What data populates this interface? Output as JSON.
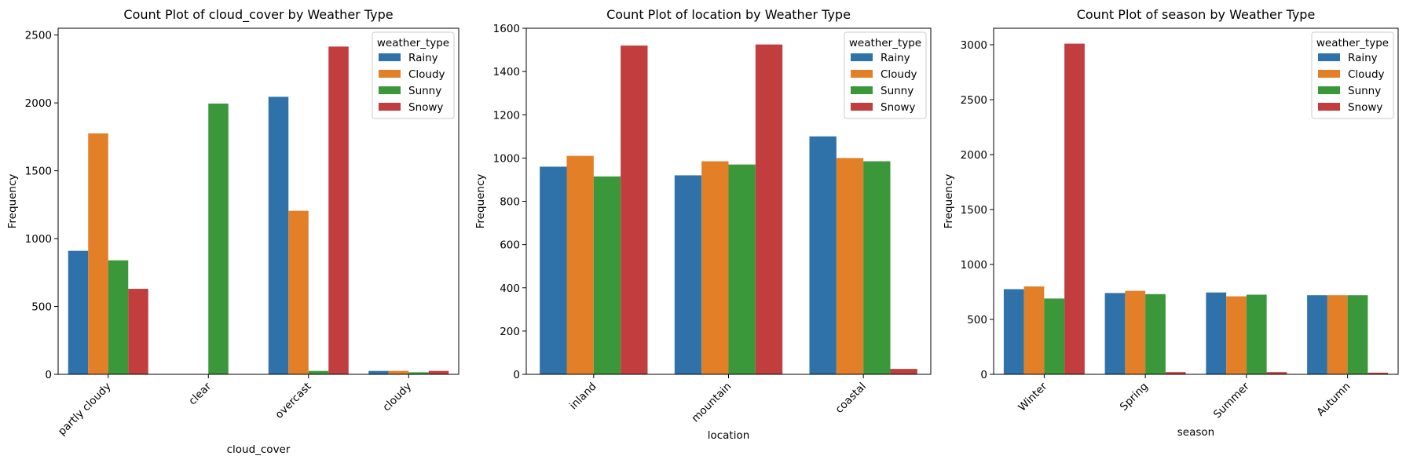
{
  "colors": {
    "Rainy": "#2e72a9",
    "Cloudy": "#e27f27",
    "Sunny": "#3a983a",
    "Snowy": "#c23d3e"
  },
  "chart_data": [
    {
      "type": "bar",
      "title": "Count Plot of cloud_cover by Weather Type",
      "xlabel": "cloud_cover",
      "ylabel": "Frequency",
      "ylim": [
        0,
        2550
      ],
      "yticks": [
        0,
        500,
        1000,
        1500,
        2000,
        2500
      ],
      "categories": [
        "partly cloudy",
        "clear",
        "overcast",
        "cloudy"
      ],
      "legend_title": "weather_type",
      "legend_position": "top-right",
      "grid": false,
      "series": [
        {
          "name": "Rainy",
          "values": [
            910,
            0,
            2045,
            25
          ]
        },
        {
          "name": "Cloudy",
          "values": [
            1775,
            0,
            1205,
            25
          ]
        },
        {
          "name": "Sunny",
          "values": [
            840,
            1995,
            25,
            15
          ]
        },
        {
          "name": "Snowy",
          "values": [
            630,
            0,
            2415,
            25
          ]
        }
      ]
    },
    {
      "type": "bar",
      "title": "Count Plot of location by Weather Type",
      "xlabel": "location",
      "ylabel": "Frequency",
      "ylim": [
        0,
        1600
      ],
      "yticks": [
        0,
        200,
        400,
        600,
        800,
        1000,
        1200,
        1400,
        1600
      ],
      "categories": [
        "inland",
        "mountain",
        "coastal"
      ],
      "legend_title": "weather_type",
      "legend_position": "top-right",
      "grid": false,
      "series": [
        {
          "name": "Rainy",
          "values": [
            960,
            920,
            1100
          ]
        },
        {
          "name": "Cloudy",
          "values": [
            1010,
            985,
            1000
          ]
        },
        {
          "name": "Sunny",
          "values": [
            915,
            970,
            985
          ]
        },
        {
          "name": "Snowy",
          "values": [
            1520,
            1525,
            25
          ]
        }
      ]
    },
    {
      "type": "bar",
      "title": "Count Plot of season by Weather Type",
      "xlabel": "season",
      "ylabel": "Frequency",
      "ylim": [
        0,
        3150
      ],
      "yticks": [
        0,
        500,
        1000,
        1500,
        2000,
        2500,
        3000
      ],
      "categories": [
        "Winter",
        "Spring",
        "Summer",
        "Autumn"
      ],
      "legend_title": "weather_type",
      "legend_position": "top-right",
      "grid": false,
      "series": [
        {
          "name": "Rainy",
          "values": [
            775,
            740,
            745,
            720
          ]
        },
        {
          "name": "Cloudy",
          "values": [
            800,
            760,
            710,
            720
          ]
        },
        {
          "name": "Sunny",
          "values": [
            690,
            730,
            725,
            720
          ]
        },
        {
          "name": "Snowy",
          "values": [
            3010,
            20,
            20,
            15
          ]
        }
      ]
    }
  ]
}
